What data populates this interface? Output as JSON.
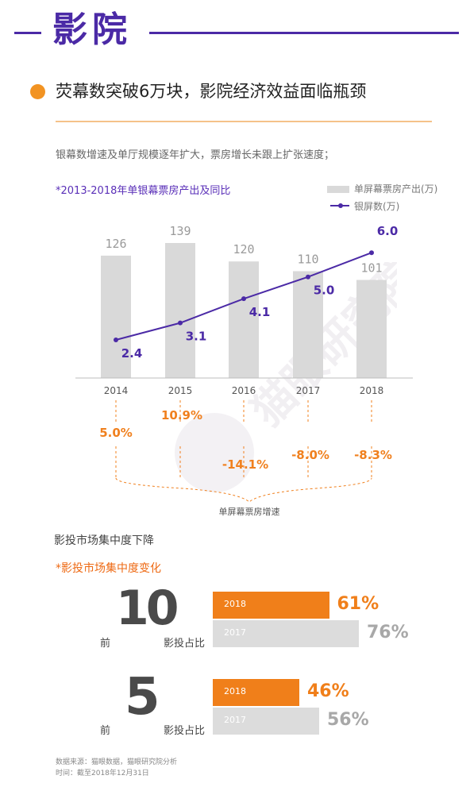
{
  "header": {
    "title": "影院"
  },
  "section": {
    "title": "荧幕数突破6万块，影院经济效益面临瓶颈"
  },
  "intro": "银幕数增速及单厅规模逐年扩大，票房增长未跟上扩张速度；",
  "watermark_text": "猫眼研究院",
  "colors": {
    "purple": "#4b2aa6",
    "orange": "#f0801e",
    "bar_gray": "#d9d9d9",
    "bar2018": "#f07f1a"
  },
  "chart1": {
    "title": "*2013-2018年单银幕票房产出及同比",
    "legend": {
      "bars": "单屏幕票房产出(万)",
      "line": "银屏数(万)"
    },
    "growth_axis_label": "单屏幕票房增速"
  },
  "chart_data": [
    {
      "type": "bar",
      "title": "*2013-2018年单银幕票房产出及同比",
      "categories": [
        "2014",
        "2015",
        "2016",
        "2017",
        "2018"
      ],
      "series": [
        {
          "name": "单屏幕票房产出(万)",
          "type": "bar",
          "values": [
            126,
            139,
            120,
            110,
            101
          ]
        },
        {
          "name": "银屏数(万)",
          "type": "line",
          "values": [
            2.4,
            3.1,
            4.1,
            5.0,
            6.0
          ]
        },
        {
          "name": "单屏幕票房增速",
          "type": "label",
          "values": [
            "5.0%",
            "10.9%",
            "-14.1%",
            "-8.0%",
            "-8.3%"
          ]
        }
      ],
      "legend_position": "top-right"
    },
    {
      "type": "bar",
      "title": "*影投市场集中度变化",
      "groups": [
        {
          "prefix": "前",
          "rank": "10",
          "suffix": "影投占比",
          "bars": [
            {
              "year": "2018",
              "value": 61,
              "label": "61%"
            },
            {
              "year": "2017",
              "value": 76,
              "label": "76%"
            }
          ]
        },
        {
          "prefix": "前",
          "rank": "5",
          "suffix": "影投占比",
          "bars": [
            {
              "year": "2018",
              "value": 46,
              "label": "46%"
            },
            {
              "year": "2017",
              "value": 56,
              "label": "56%"
            }
          ]
        }
      ]
    }
  ],
  "section2": {
    "subtitle": "影投市场集中度下降",
    "title": "*影投市场集中度变化"
  },
  "footnote": {
    "source": "数据来源：猫眼数据，猫眼研究院分析",
    "time": "时间：截至2018年12月31日"
  }
}
